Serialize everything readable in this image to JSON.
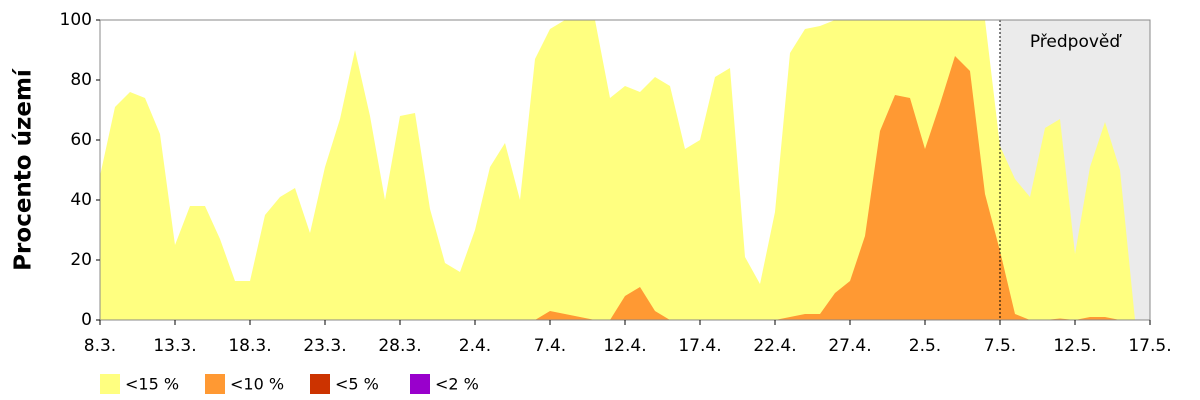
{
  "chart_data": {
    "type": "area",
    "y_label": "Procento území",
    "categories": [
      "8.3.",
      null,
      null,
      null,
      null,
      "13.3.",
      null,
      null,
      null,
      null,
      "18.3.",
      null,
      null,
      null,
      null,
      "23.3.",
      null,
      null,
      null,
      null,
      "28.3.",
      null,
      null,
      null,
      null,
      "2.4.",
      null,
      null,
      null,
      null,
      "7.4.",
      null,
      null,
      null,
      null,
      "12.4.",
      null,
      null,
      null,
      null,
      "17.4.",
      null,
      null,
      null,
      null,
      "22.4.",
      null,
      null,
      null,
      null,
      "27.4.",
      null,
      null,
      null,
      null,
      "2.5.",
      null,
      null,
      null,
      null,
      "7.5.",
      null,
      null,
      null,
      null,
      "12.5.",
      null,
      null,
      null,
      null,
      "17.5."
    ],
    "series": [
      {
        "name": "<15 %",
        "color": "#ffff80",
        "values": [
          48,
          71,
          76,
          74,
          62,
          25,
          38,
          38,
          27,
          13,
          13,
          35,
          41,
          44,
          29,
          51,
          67,
          90,
          68,
          40,
          68,
          69,
          37,
          19,
          16,
          30,
          51,
          59,
          40,
          87,
          97,
          100,
          100,
          100,
          74,
          78,
          76,
          81,
          78,
          57,
          60,
          81,
          84,
          21,
          12,
          36,
          89,
          97,
          98,
          100,
          100,
          100,
          100,
          100,
          100,
          100,
          100,
          100,
          100,
          100,
          58,
          47,
          41,
          64,
          67,
          22,
          51,
          66,
          50,
          0,
          0
        ]
      },
      {
        "name": "<10 %",
        "color": "#ff9933",
        "values": [
          0,
          0,
          0,
          0,
          0,
          0,
          0,
          0,
          0,
          0,
          0,
          0,
          0,
          0,
          0,
          0,
          0,
          0,
          0,
          0,
          0,
          0,
          0,
          0,
          0,
          0,
          0,
          0,
          0,
          0,
          3,
          2,
          1,
          0,
          0,
          8,
          11,
          3,
          0,
          0,
          0,
          0,
          0,
          0,
          0,
          0,
          1,
          2,
          2,
          9,
          13,
          28,
          63,
          75,
          74,
          57,
          72,
          88,
          83,
          42,
          23,
          2,
          0,
          0,
          0.5,
          0,
          1,
          1,
          0,
          0,
          0
        ]
      },
      {
        "name": "<5 %",
        "color": "#cc3300",
        "values": [
          0,
          0,
          0,
          0,
          0,
          0,
          0,
          0,
          0,
          0,
          0,
          0,
          0,
          0,
          0,
          0,
          0,
          0,
          0,
          0,
          0,
          0,
          0,
          0,
          0,
          0,
          0,
          0,
          0,
          0,
          0,
          0,
          0,
          0,
          0,
          0,
          0,
          0,
          0,
          0,
          0,
          0,
          0,
          0,
          0,
          0,
          0,
          0,
          0,
          0,
          0,
          0,
          0,
          0,
          0,
          0,
          0,
          0,
          0,
          0,
          0,
          0,
          0,
          0,
          0,
          0,
          0,
          0,
          0,
          0,
          0
        ]
      },
      {
        "name": "<2 %",
        "color": "#9900cc",
        "values": [
          0,
          0,
          0,
          0,
          0,
          0,
          0,
          0,
          0,
          0,
          0,
          0,
          0,
          0,
          0,
          0,
          0,
          0,
          0,
          0,
          0,
          0,
          0,
          0,
          0,
          0,
          0,
          0,
          0,
          0,
          0,
          0,
          0,
          0,
          0,
          0,
          0,
          0,
          0,
          0,
          0,
          0,
          0,
          0,
          0,
          0,
          0,
          0,
          0,
          0,
          0,
          0,
          0,
          0,
          0,
          0,
          0,
          0,
          0,
          0,
          0,
          0,
          0,
          0,
          0,
          0,
          0,
          0,
          0,
          0,
          0
        ]
      }
    ],
    "forecast_label": "Předpověď",
    "forecast_start": "7.5.",
    "forecast_color": "#ebebeb",
    "ylim": [
      0,
      100
    ],
    "yticks": [
      0,
      20,
      40,
      60,
      80,
      100
    ],
    "legend": "bottom-left"
  }
}
